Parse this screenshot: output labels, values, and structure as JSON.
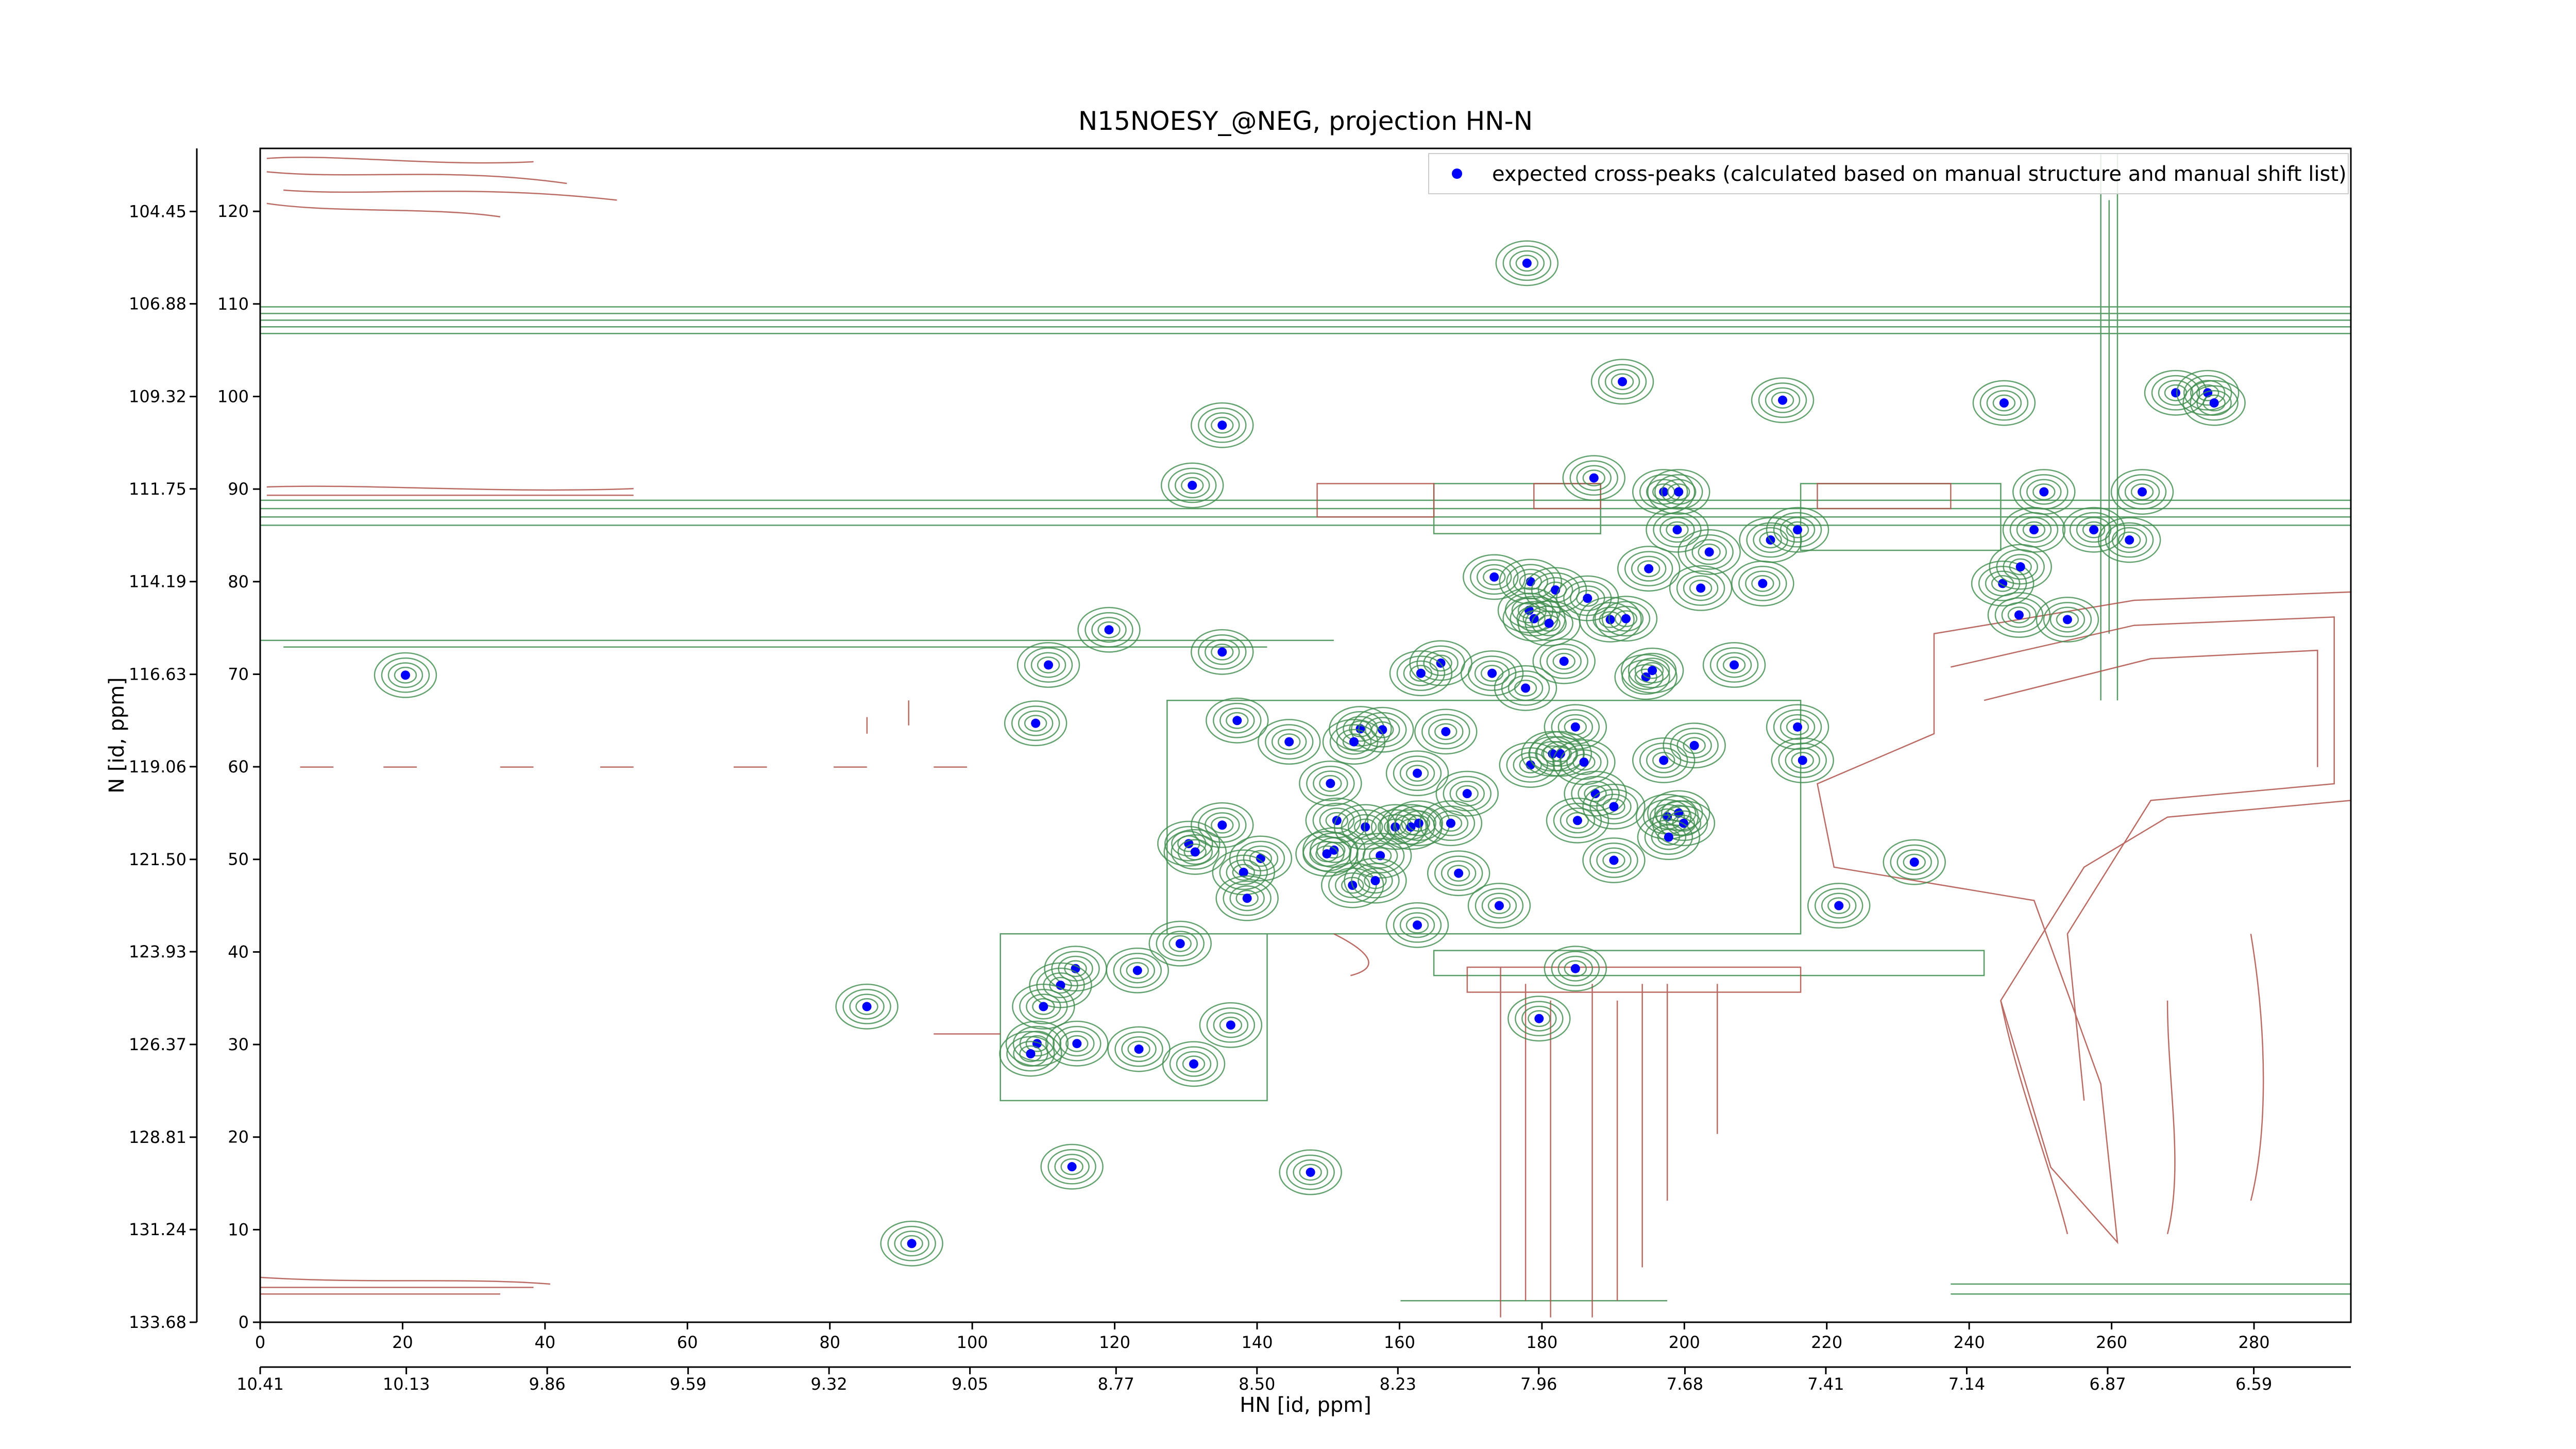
{
  "chart_data": {
    "type": "scatter",
    "title": "N15NOESY_@NEG, projection HN-N",
    "xlabel": "HN [id, ppm]",
    "ylabel": "N [id, ppm]",
    "legend": "upper right",
    "series": [
      {
        "name": "expected cross-peaks (calculated based on manual structure and manual shift list)",
        "color": "#0000ff",
        "x": [
          177.9,
          191.3,
          213.8,
          244.9,
          269.0,
          273.5,
          274.4,
          135.1,
          130.9,
          187.3,
          197.1,
          199.2,
          250.5,
          264.3,
          199.0,
          203.5,
          212.1,
          215.9,
          249.1,
          257.5,
          262.5,
          173.3,
          178.4,
          181.9,
          186.4,
          195.0,
          202.3,
          211.0,
          244.7,
          247.2,
          178.2,
          178.9,
          181.0,
          189.6,
          191.8,
          247.0,
          253.8,
          119.2,
          20.4,
          110.7,
          135.1,
          165.8,
          163.0,
          173.0,
          177.7,
          183.1,
          194.6,
          195.5,
          207.0,
          108.9,
          137.2,
          144.5,
          154.5,
          157.6,
          153.6,
          166.5,
          184.7,
          201.4,
          215.9,
          216.6,
          162.5,
          178.4,
          181.5,
          182.6,
          185.9,
          197.1,
          150.3,
          169.5,
          187.5,
          190.1,
          135.1,
          151.2,
          155.2,
          159.4,
          161.6,
          162.7,
          167.2,
          185.0,
          197.6,
          199.2,
          199.9,
          197.8,
          130.4,
          131.3,
          140.5,
          138.1,
          150.8,
          149.8,
          157.3,
          190.1,
          168.3,
          153.4,
          156.6,
          138.6,
          232.3,
          174.0,
          162.5,
          221.7,
          129.2,
          114.5,
          112.4,
          123.2,
          184.7,
          85.2,
          110.0,
          109.1,
          108.2,
          114.7,
          123.4,
          131.1,
          136.3,
          179.6,
          147.5,
          114.0,
          91.5
        ],
        "values": [
          114.4,
          101.6,
          99.6,
          99.3,
          100.4,
          100.4,
          99.3,
          96.9,
          90.4,
          91.2,
          89.7,
          89.7,
          89.7,
          89.7,
          85.6,
          83.2,
          84.5,
          85.6,
          85.6,
          85.6,
          84.5,
          80.5,
          80.0,
          79.1,
          78.2,
          81.4,
          79.3,
          79.8,
          79.8,
          81.6,
          76.9,
          76.0,
          75.5,
          75.9,
          76.0,
          76.4,
          75.9,
          74.8,
          69.9,
          71.0,
          72.4,
          71.2,
          70.1,
          70.1,
          68.5,
          71.4,
          69.7,
          70.4,
          71.0,
          64.7,
          65.0,
          62.7,
          64.1,
          64.0,
          62.7,
          63.8,
          64.3,
          62.3,
          64.3,
          60.7,
          59.3,
          60.2,
          61.4,
          61.4,
          60.5,
          60.7,
          58.2,
          57.1,
          57.1,
          55.7,
          53.7,
          54.2,
          53.5,
          53.5,
          53.5,
          53.9,
          53.9,
          54.2,
          54.6,
          55.0,
          53.9,
          52.4,
          51.7,
          50.8,
          50.1,
          48.6,
          51.0,
          50.6,
          50.4,
          49.9,
          48.5,
          47.2,
          47.7,
          45.8,
          49.7,
          45.0,
          42.9,
          45.0,
          40.9,
          38.2,
          36.4,
          38.0,
          38.2,
          34.1,
          34.1,
          30.1,
          29.0,
          30.1,
          29.5,
          27.9,
          32.1,
          32.8,
          16.2,
          16.8,
          8.5
        ]
      }
    ],
    "xlim": [
      0,
      293.6
    ],
    "xticks": [
      0,
      20,
      40,
      60,
      80,
      100,
      120,
      140,
      160,
      180,
      200,
      220,
      240,
      260,
      280
    ],
    "ylim": [
      0,
      126.8
    ],
    "yticks": [
      0,
      10,
      20,
      30,
      40,
      50,
      60,
      70,
      80,
      90,
      100,
      110,
      120
    ],
    "x2lim": [
      10.41,
      6.404
    ],
    "x2ticks": [
      10.41,
      10.13,
      9.86,
      9.59,
      9.32,
      9.05,
      8.77,
      {
        "value": 8.5,
        "label": "8.50"
      },
      8.23,
      7.96,
      7.68,
      7.41,
      7.14,
      6.87,
      6.59
    ],
    "y2lim": [
      133.68,
      102.79
    ],
    "y2ticks": [
      133.68,
      131.24,
      128.81,
      126.37,
      123.93,
      {
        "value": 121.5,
        "label": "121.50"
      },
      119.06,
      116.63,
      114.19,
      111.75,
      109.32,
      106.88,
      104.45
    ]
  }
}
